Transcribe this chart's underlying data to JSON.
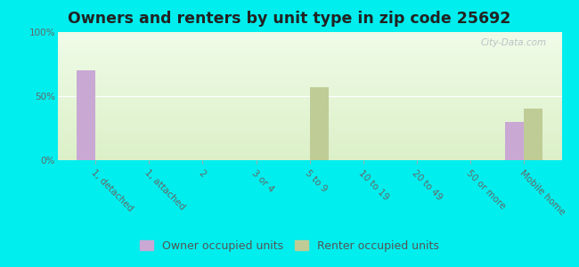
{
  "title": "Owners and renters by unit type in zip code 25692",
  "categories": [
    "1, detached",
    "1, attached",
    "2",
    "3 or 4",
    "5 to 9",
    "10 to 19",
    "20 to 49",
    "50 or more",
    "Mobile home"
  ],
  "owner_values": [
    70,
    0,
    0,
    0,
    0,
    0,
    0,
    0,
    30
  ],
  "renter_values": [
    0,
    0,
    0,
    0,
    57,
    0,
    0,
    0,
    40
  ],
  "owner_color": "#c9a8d4",
  "renter_color": "#bfcc96",
  "bg_color_topleft": "#d8ecd0",
  "bg_color_topright": "#f0f8e8",
  "bg_color_bottom": "#eef8e0",
  "outer_bg": "#00eeee",
  "ylim": [
    0,
    100
  ],
  "yticks": [
    0,
    50,
    100
  ],
  "ytick_labels": [
    "0%",
    "50%",
    "100%"
  ],
  "bar_width": 0.35,
  "title_fontsize": 12.5,
  "tick_fontsize": 7.5,
  "legend_fontsize": 9,
  "watermark_text": "City-Data.com"
}
